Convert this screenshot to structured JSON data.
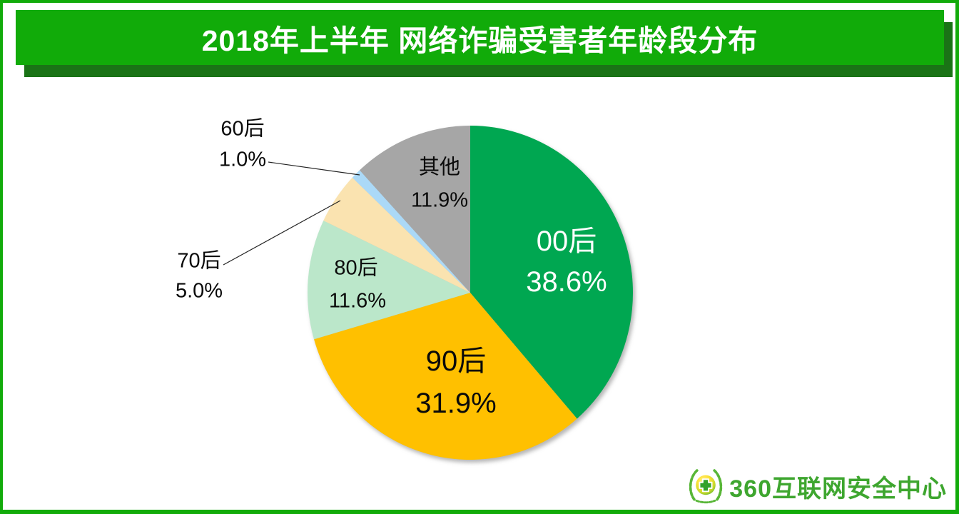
{
  "header": {
    "title": "2018年上半年 网络诈骗受害者年龄段分布",
    "bg_color": "#11AB09",
    "shadow_color": "#1A7316",
    "text_color": "#FFFFFF",
    "page_border_color": "#12AB0A"
  },
  "chart_data": {
    "type": "pie",
    "title": "2018年上半年 网络诈骗受害者年龄段分布",
    "unit": "percent",
    "start_angle_deg": 0,
    "direction": "clockwise",
    "legend": "none",
    "slices": [
      {
        "label": "00后",
        "value": 38.6,
        "display": "38.6%",
        "color": "#00A751",
        "label_placement": "inside",
        "label_color": "#FFFFFF"
      },
      {
        "label": "90后",
        "value": 31.9,
        "display": "31.9%",
        "color": "#FFC000",
        "label_placement": "inside",
        "label_color": "#000000"
      },
      {
        "label": "80后",
        "value": 11.6,
        "display": "11.6%",
        "color": "#BBE7CA",
        "label_placement": "inside",
        "label_color": "#000000"
      },
      {
        "label": "70后",
        "value": 5.0,
        "display": "5.0%",
        "color": "#FAE3B0",
        "label_placement": "outside",
        "label_color": "#000000"
      },
      {
        "label": "60后",
        "value": 1.0,
        "display": "1.0%",
        "color": "#ABD9F7",
        "label_placement": "outside",
        "label_color": "#000000"
      },
      {
        "label": "其他",
        "value": 11.9,
        "display": "11.9%",
        "color": "#A6A6A6",
        "label_placement": "inside",
        "label_color": "#000000"
      }
    ]
  },
  "footer": {
    "logo_text": "360互联网安全中心",
    "logo_color": "#3EA62F"
  }
}
